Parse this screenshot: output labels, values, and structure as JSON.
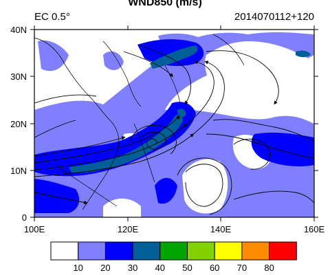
{
  "title": "WND850 (m/s)",
  "left_label": "EC 0.5°",
  "right_label": "2014070112+120",
  "y_ticks": [
    "40N",
    "30N",
    "20N",
    "10N",
    "0"
  ],
  "x_ticks": [
    "100E",
    "120E",
    "140E",
    "160E"
  ],
  "colorbar": {
    "colors": [
      "#ffffff",
      "#8080ff",
      "#0000ff",
      "#005f96",
      "#00a500",
      "#82d200",
      "#ffff00",
      "#ff8c00",
      "#ff0000"
    ],
    "labels": [
      "10",
      "20",
      "30",
      "40",
      "50",
      "60",
      "70",
      "80"
    ]
  }
}
